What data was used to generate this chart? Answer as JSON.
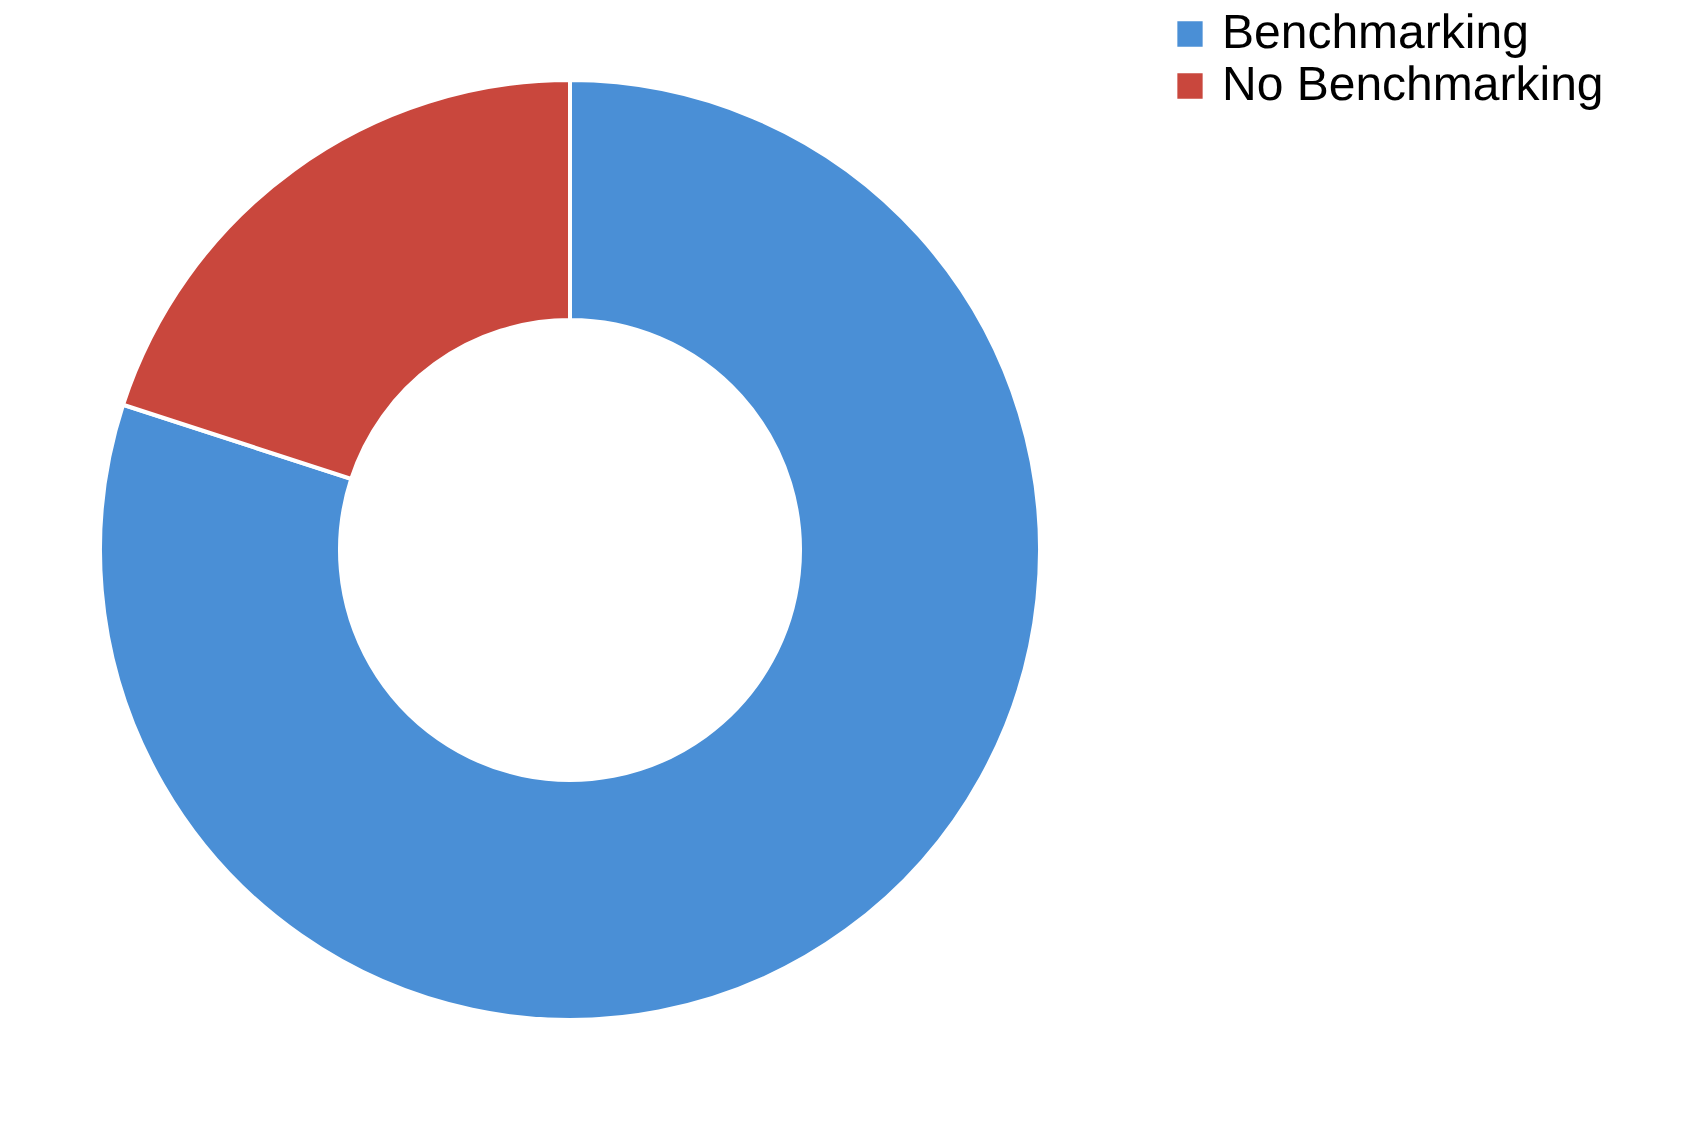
{
  "chart_data": {
    "type": "donut",
    "categories": [
      "Benchmarking",
      "No Benchmarking"
    ],
    "values": [
      80,
      20
    ],
    "colors": [
      "#4a8fd6",
      "#c9473d"
    ],
    "legend": "right"
  }
}
